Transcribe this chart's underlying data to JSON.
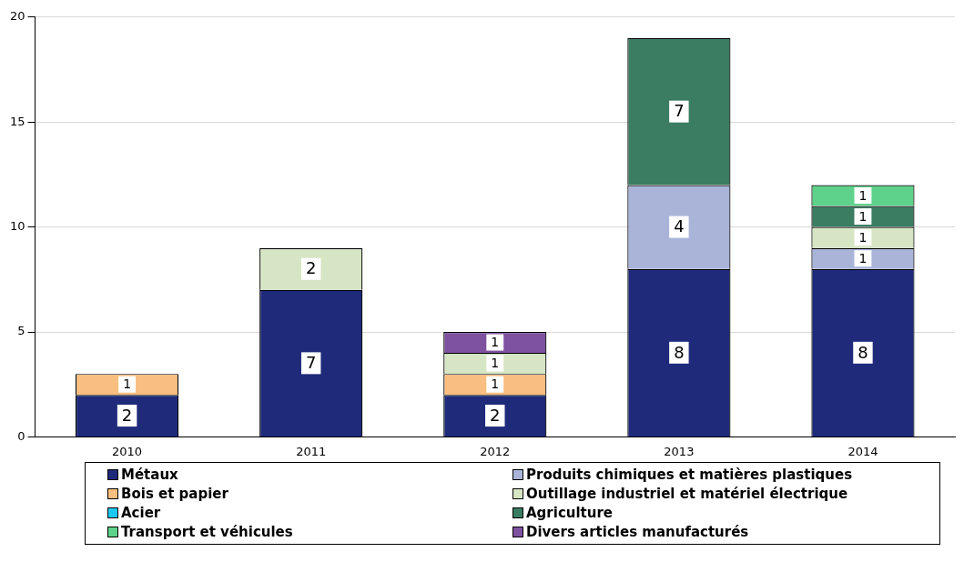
{
  "chart_data": {
    "type": "bar",
    "stacked": true,
    "categories": [
      "2010",
      "2011",
      "2012",
      "2013",
      "2014"
    ],
    "series": [
      {
        "name": "Métaux",
        "color": "#1f2a7a",
        "values": [
          2,
          7,
          2,
          8,
          8
        ]
      },
      {
        "name": "Produits chimiques et matières plastiques",
        "color": "#a9b4d8",
        "values": [
          null,
          null,
          null,
          4,
          1
        ]
      },
      {
        "name": "Bois et papier",
        "color": "#f9bf80",
        "values": [
          1,
          null,
          1,
          null,
          null
        ]
      },
      {
        "name": "Outillage industriel et matériel électrique",
        "color": "#d6e6c4",
        "values": [
          null,
          2,
          1,
          null,
          1
        ]
      },
      {
        "name": "Acier",
        "color": "#1ac8f0",
        "values": [
          null,
          null,
          null,
          null,
          null
        ]
      },
      {
        "name": "Agriculture",
        "color": "#3a7d62",
        "values": [
          null,
          null,
          null,
          7,
          1
        ]
      },
      {
        "name": "Transport et véhicules",
        "color": "#5ed28a",
        "values": [
          null,
          null,
          null,
          null,
          1
        ]
      },
      {
        "name": "Divers articles manufacturés",
        "color": "#7f52a0",
        "values": [
          null,
          null,
          1,
          null,
          null
        ]
      }
    ],
    "ylim": [
      0,
      20
    ],
    "yticks": [
      0,
      5,
      10,
      15,
      20
    ],
    "grid": "y",
    "legend": "bottom",
    "data_labels": true
  }
}
